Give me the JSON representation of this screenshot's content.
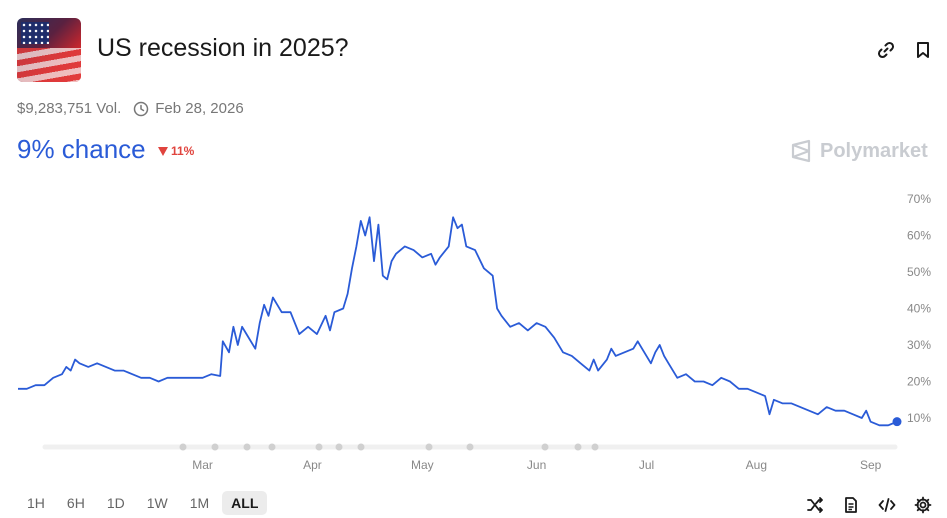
{
  "market": {
    "title": "US recession in 2025?",
    "volume": "$9,283,751 Vol.",
    "end_date": "Feb 28, 2026",
    "chance": "9% chance",
    "change": "11%",
    "brand": "Polymarket"
  },
  "colors": {
    "accent": "#2a5bd7",
    "down": "#e0443e",
    "brand_gray": "#c9ccd1"
  },
  "icons": [
    "link-icon",
    "bookmark-icon",
    "clock-icon",
    "shuffle-icon",
    "document-icon",
    "code-icon",
    "gear-icon"
  ],
  "timeframes": [
    "1H",
    "6H",
    "1D",
    "1W",
    "1M",
    "ALL"
  ],
  "active_timeframe": "ALL",
  "chart_data": {
    "type": "line",
    "x_tick_labels": [
      "Mar",
      "Apr",
      "May",
      "Jun",
      "Jul",
      "Aug",
      "Sep"
    ],
    "y_tick_labels": [
      "10%",
      "20%",
      "30%",
      "40%",
      "50%",
      "60%",
      "70%"
    ],
    "ylim": [
      0,
      70
    ],
    "grid": false,
    "x_range": [
      0,
      100
    ],
    "series": [
      {
        "color": "#2a5bd7",
        "points": [
          [
            0,
            18
          ],
          [
            1,
            18
          ],
          [
            2,
            19
          ],
          [
            3,
            19
          ],
          [
            4,
            21
          ],
          [
            5,
            22
          ],
          [
            5.5,
            24
          ],
          [
            6,
            23
          ],
          [
            6.5,
            26
          ],
          [
            7,
            25
          ],
          [
            8,
            24
          ],
          [
            9,
            25
          ],
          [
            10,
            24
          ],
          [
            11,
            23
          ],
          [
            12,
            23
          ],
          [
            13,
            22
          ],
          [
            14,
            21
          ],
          [
            15,
            21
          ],
          [
            16,
            20
          ],
          [
            17,
            21
          ],
          [
            18,
            21
          ],
          [
            19,
            21
          ],
          [
            20,
            21
          ],
          [
            21,
            21
          ],
          [
            22,
            22
          ],
          [
            23,
            21.5
          ],
          [
            23.3,
            31
          ],
          [
            24,
            28
          ],
          [
            24.5,
            35
          ],
          [
            25,
            30
          ],
          [
            25.5,
            35
          ],
          [
            26,
            33
          ],
          [
            27,
            29
          ],
          [
            27.5,
            36
          ],
          [
            28,
            41
          ],
          [
            28.5,
            38
          ],
          [
            29,
            43
          ],
          [
            29.5,
            41
          ],
          [
            30,
            39
          ],
          [
            31,
            39
          ],
          [
            32,
            33
          ],
          [
            33,
            35
          ],
          [
            34,
            33
          ],
          [
            35,
            38
          ],
          [
            35.5,
            34
          ],
          [
            36,
            39
          ],
          [
            37,
            40
          ],
          [
            37.5,
            44
          ],
          [
            38,
            51
          ],
          [
            38.5,
            57
          ],
          [
            39,
            64
          ],
          [
            39.5,
            60
          ],
          [
            40,
            65
          ],
          [
            40.5,
            53
          ],
          [
            41,
            63
          ],
          [
            41.5,
            49
          ],
          [
            42,
            48
          ],
          [
            42.5,
            53
          ],
          [
            43,
            55
          ],
          [
            44,
            57
          ],
          [
            45,
            56
          ],
          [
            46,
            54
          ],
          [
            47,
            55
          ],
          [
            47.5,
            52
          ],
          [
            48,
            54
          ],
          [
            49,
            57
          ],
          [
            49.5,
            65
          ],
          [
            50,
            62
          ],
          [
            50.5,
            63
          ],
          [
            51,
            57
          ],
          [
            52,
            56
          ],
          [
            53,
            51
          ],
          [
            54,
            49
          ],
          [
            54.5,
            40
          ],
          [
            55,
            38
          ],
          [
            56,
            35
          ],
          [
            57,
            36
          ],
          [
            58,
            34
          ],
          [
            59,
            36
          ],
          [
            60,
            35
          ],
          [
            61,
            32
          ],
          [
            62,
            28
          ],
          [
            63,
            27
          ],
          [
            64,
            25
          ],
          [
            65,
            23
          ],
          [
            65.5,
            26
          ],
          [
            66,
            23
          ],
          [
            67,
            26
          ],
          [
            67.5,
            29
          ],
          [
            68,
            27
          ],
          [
            69,
            28
          ],
          [
            70,
            29
          ],
          [
            70.5,
            31
          ],
          [
            71,
            29
          ],
          [
            72,
            25
          ],
          [
            72.5,
            28
          ],
          [
            73,
            30
          ],
          [
            73.5,
            27
          ],
          [
            74,
            25
          ],
          [
            75,
            21
          ],
          [
            76,
            22
          ],
          [
            77,
            20
          ],
          [
            78,
            20
          ],
          [
            79,
            19
          ],
          [
            80,
            21
          ],
          [
            81,
            20
          ],
          [
            82,
            18
          ],
          [
            83,
            18
          ],
          [
            84,
            17
          ],
          [
            85,
            16
          ],
          [
            85.5,
            11
          ],
          [
            86,
            15
          ],
          [
            87,
            14
          ],
          [
            88,
            14
          ],
          [
            89,
            13
          ],
          [
            90,
            12
          ],
          [
            91,
            11
          ],
          [
            92,
            13
          ],
          [
            93,
            12
          ],
          [
            94,
            12
          ],
          [
            95,
            11
          ],
          [
            96,
            10
          ],
          [
            96.5,
            12
          ],
          [
            97,
            9
          ],
          [
            98,
            8
          ],
          [
            99,
            8
          ],
          [
            100,
            9
          ]
        ]
      }
    ]
  }
}
